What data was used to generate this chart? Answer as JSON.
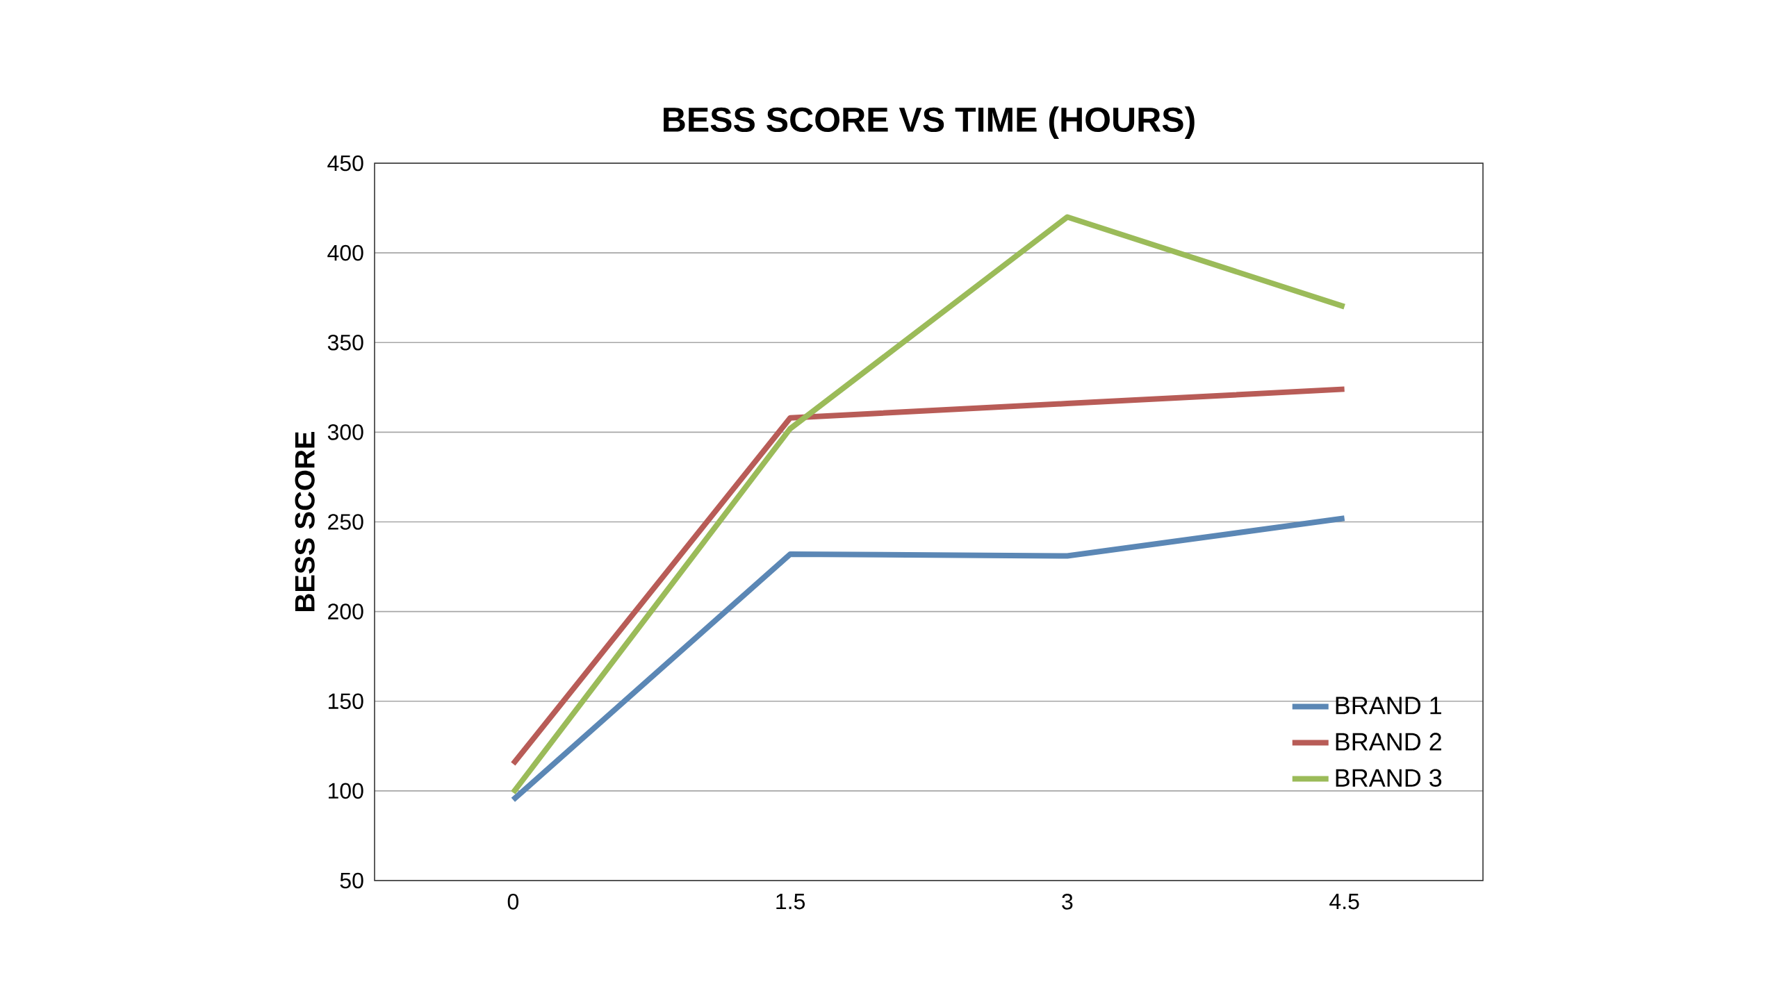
{
  "chart_data": {
    "type": "line",
    "title": "BESS SCORE VS TIME (HOURS)",
    "ylabel": "BESS SCORE",
    "categories": [
      "0",
      "1.5",
      "3",
      "4.5"
    ],
    "series": [
      {
        "name": "BRAND 1",
        "color": "#5b87b5",
        "values": [
          95,
          232,
          231,
          252
        ]
      },
      {
        "name": "BRAND 2",
        "color": "#b85c57",
        "values": [
          115,
          308,
          316,
          324
        ]
      },
      {
        "name": "BRAND 3",
        "color": "#9bbb59",
        "values": [
          99,
          302,
          420,
          370
        ]
      }
    ],
    "ylim": [
      50,
      450
    ],
    "yticks": [
      50,
      100,
      150,
      200,
      250,
      300,
      350,
      400,
      450
    ],
    "grid": "y",
    "legend": "bottom right",
    "marker": "none",
    "line_style": "solid"
  }
}
